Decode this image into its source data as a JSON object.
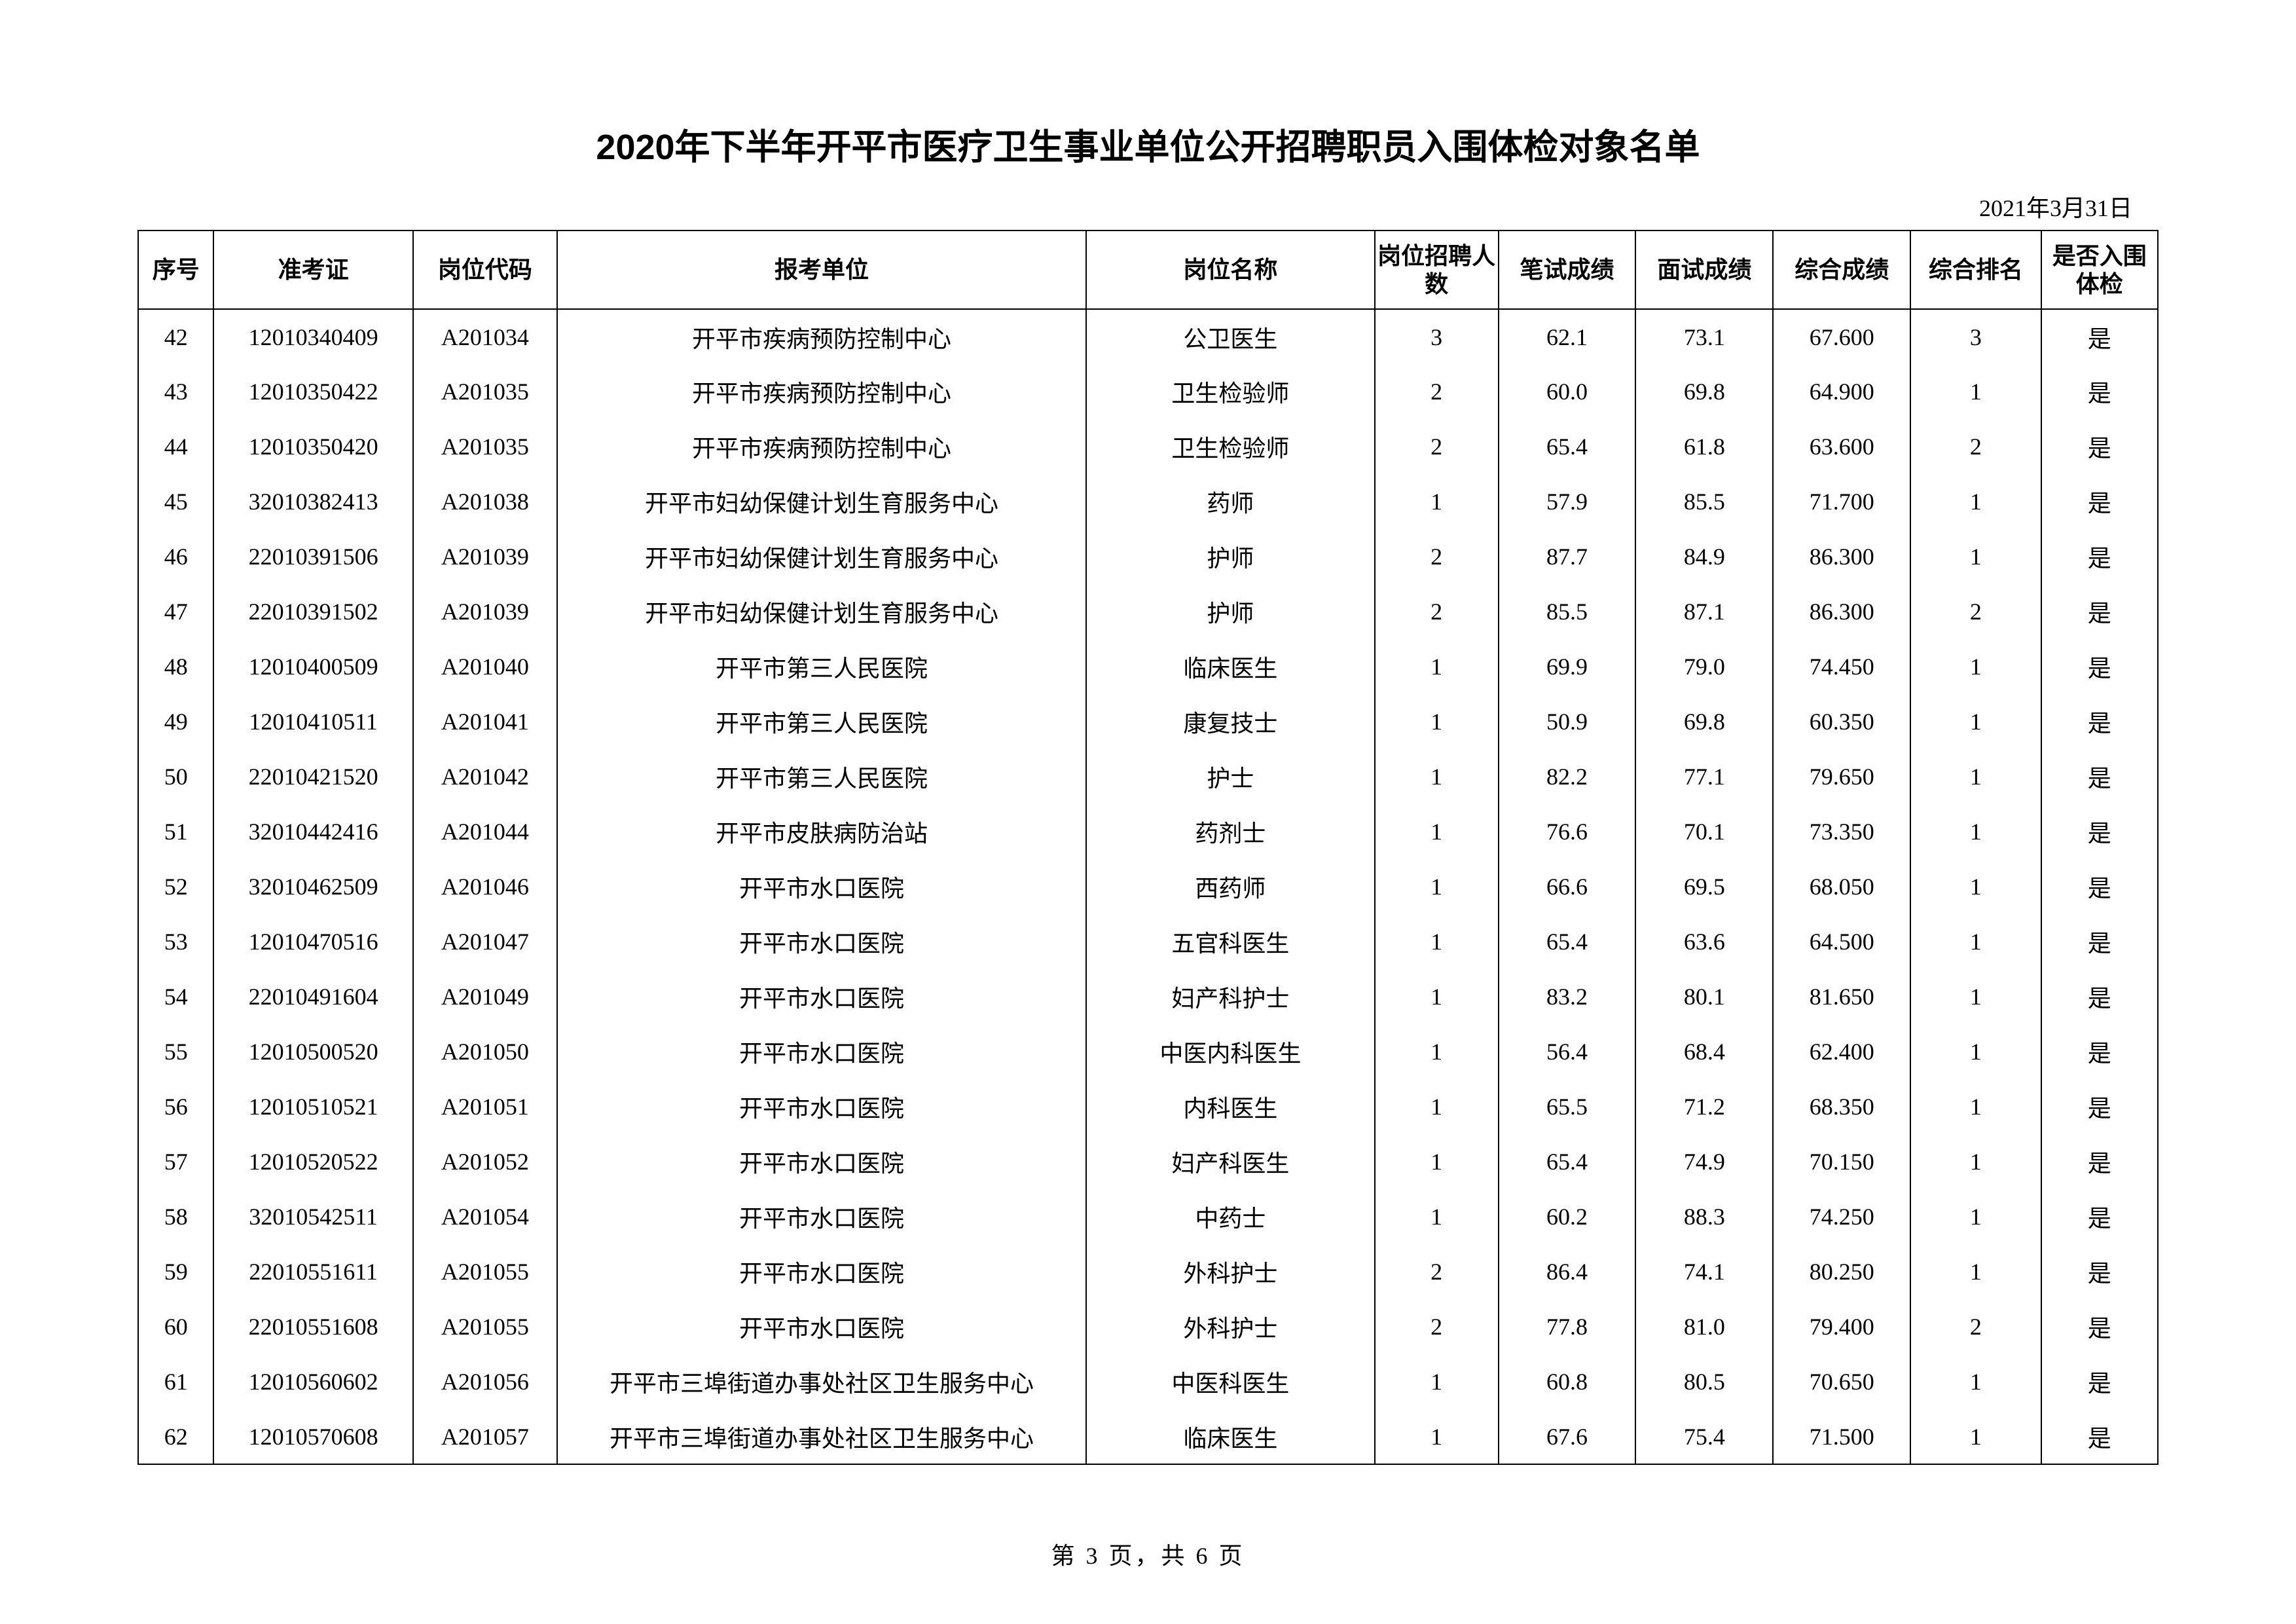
{
  "title": "2020年下半年开平市医疗卫生事业单位公开招聘职员入围体检对象名单",
  "date": "2021年3月31日",
  "footer": "第 3 页，共 6 页",
  "columns": {
    "seq": "序号",
    "exam": "准考证",
    "code": "岗位代码",
    "unit": "报考单位",
    "pos": "岗位名称",
    "cnt": "岗位招聘人数",
    "s1": "笔试成绩",
    "s2": "面试成绩",
    "s3": "综合成绩",
    "rank": "综合排名",
    "pass": "是否入围体检"
  },
  "rows": [
    {
      "seq": "42",
      "exam": "12010340409",
      "code": "A201034",
      "unit": "开平市疾病预防控制中心",
      "pos": "公卫医生",
      "cnt": "3",
      "s1": "62.1",
      "s2": "73.1",
      "s3": "67.600",
      "rank": "3",
      "pass": "是"
    },
    {
      "seq": "43",
      "exam": "12010350422",
      "code": "A201035",
      "unit": "开平市疾病预防控制中心",
      "pos": "卫生检验师",
      "cnt": "2",
      "s1": "60.0",
      "s2": "69.8",
      "s3": "64.900",
      "rank": "1",
      "pass": "是"
    },
    {
      "seq": "44",
      "exam": "12010350420",
      "code": "A201035",
      "unit": "开平市疾病预防控制中心",
      "pos": "卫生检验师",
      "cnt": "2",
      "s1": "65.4",
      "s2": "61.8",
      "s3": "63.600",
      "rank": "2",
      "pass": "是"
    },
    {
      "seq": "45",
      "exam": "32010382413",
      "code": "A201038",
      "unit": "开平市妇幼保健计划生育服务中心",
      "pos": "药师",
      "cnt": "1",
      "s1": "57.9",
      "s2": "85.5",
      "s3": "71.700",
      "rank": "1",
      "pass": "是"
    },
    {
      "seq": "46",
      "exam": "22010391506",
      "code": "A201039",
      "unit": "开平市妇幼保健计划生育服务中心",
      "pos": "护师",
      "cnt": "2",
      "s1": "87.7",
      "s2": "84.9",
      "s3": "86.300",
      "rank": "1",
      "pass": "是"
    },
    {
      "seq": "47",
      "exam": "22010391502",
      "code": "A201039",
      "unit": "开平市妇幼保健计划生育服务中心",
      "pos": "护师",
      "cnt": "2",
      "s1": "85.5",
      "s2": "87.1",
      "s3": "86.300",
      "rank": "2",
      "pass": "是"
    },
    {
      "seq": "48",
      "exam": "12010400509",
      "code": "A201040",
      "unit": "开平市第三人民医院",
      "pos": "临床医生",
      "cnt": "1",
      "s1": "69.9",
      "s2": "79.0",
      "s3": "74.450",
      "rank": "1",
      "pass": "是"
    },
    {
      "seq": "49",
      "exam": "12010410511",
      "code": "A201041",
      "unit": "开平市第三人民医院",
      "pos": "康复技士",
      "cnt": "1",
      "s1": "50.9",
      "s2": "69.8",
      "s3": "60.350",
      "rank": "1",
      "pass": "是"
    },
    {
      "seq": "50",
      "exam": "22010421520",
      "code": "A201042",
      "unit": "开平市第三人民医院",
      "pos": "护士",
      "cnt": "1",
      "s1": "82.2",
      "s2": "77.1",
      "s3": "79.650",
      "rank": "1",
      "pass": "是"
    },
    {
      "seq": "51",
      "exam": "32010442416",
      "code": "A201044",
      "unit": "开平市皮肤病防治站",
      "pos": "药剂士",
      "cnt": "1",
      "s1": "76.6",
      "s2": "70.1",
      "s3": "73.350",
      "rank": "1",
      "pass": "是"
    },
    {
      "seq": "52",
      "exam": "32010462509",
      "code": "A201046",
      "unit": "开平市水口医院",
      "pos": "西药师",
      "cnt": "1",
      "s1": "66.6",
      "s2": "69.5",
      "s3": "68.050",
      "rank": "1",
      "pass": "是"
    },
    {
      "seq": "53",
      "exam": "12010470516",
      "code": "A201047",
      "unit": "开平市水口医院",
      "pos": "五官科医生",
      "cnt": "1",
      "s1": "65.4",
      "s2": "63.6",
      "s3": "64.500",
      "rank": "1",
      "pass": "是"
    },
    {
      "seq": "54",
      "exam": "22010491604",
      "code": "A201049",
      "unit": "开平市水口医院",
      "pos": "妇产科护士",
      "cnt": "1",
      "s1": "83.2",
      "s2": "80.1",
      "s3": "81.650",
      "rank": "1",
      "pass": "是"
    },
    {
      "seq": "55",
      "exam": "12010500520",
      "code": "A201050",
      "unit": "开平市水口医院",
      "pos": "中医内科医生",
      "cnt": "1",
      "s1": "56.4",
      "s2": "68.4",
      "s3": "62.400",
      "rank": "1",
      "pass": "是"
    },
    {
      "seq": "56",
      "exam": "12010510521",
      "code": "A201051",
      "unit": "开平市水口医院",
      "pos": "内科医生",
      "cnt": "1",
      "s1": "65.5",
      "s2": "71.2",
      "s3": "68.350",
      "rank": "1",
      "pass": "是"
    },
    {
      "seq": "57",
      "exam": "12010520522",
      "code": "A201052",
      "unit": "开平市水口医院",
      "pos": "妇产科医生",
      "cnt": "1",
      "s1": "65.4",
      "s2": "74.9",
      "s3": "70.150",
      "rank": "1",
      "pass": "是"
    },
    {
      "seq": "58",
      "exam": "32010542511",
      "code": "A201054",
      "unit": "开平市水口医院",
      "pos": "中药士",
      "cnt": "1",
      "s1": "60.2",
      "s2": "88.3",
      "s3": "74.250",
      "rank": "1",
      "pass": "是"
    },
    {
      "seq": "59",
      "exam": "22010551611",
      "code": "A201055",
      "unit": "开平市水口医院",
      "pos": "外科护士",
      "cnt": "2",
      "s1": "86.4",
      "s2": "74.1",
      "s3": "80.250",
      "rank": "1",
      "pass": "是"
    },
    {
      "seq": "60",
      "exam": "22010551608",
      "code": "A201055",
      "unit": "开平市水口医院",
      "pos": "外科护士",
      "cnt": "2",
      "s1": "77.8",
      "s2": "81.0",
      "s3": "79.400",
      "rank": "2",
      "pass": "是"
    },
    {
      "seq": "61",
      "exam": "12010560602",
      "code": "A201056",
      "unit": "开平市三埠街道办事处社区卫生服务中心",
      "pos": "中医科医生",
      "cnt": "1",
      "s1": "60.8",
      "s2": "80.5",
      "s3": "70.650",
      "rank": "1",
      "pass": "是"
    },
    {
      "seq": "62",
      "exam": "12010570608",
      "code": "A201057",
      "unit": "开平市三埠街道办事处社区卫生服务中心",
      "pos": "临床医生",
      "cnt": "1",
      "s1": "67.6",
      "s2": "75.4",
      "s3": "71.500",
      "rank": "1",
      "pass": "是"
    }
  ]
}
